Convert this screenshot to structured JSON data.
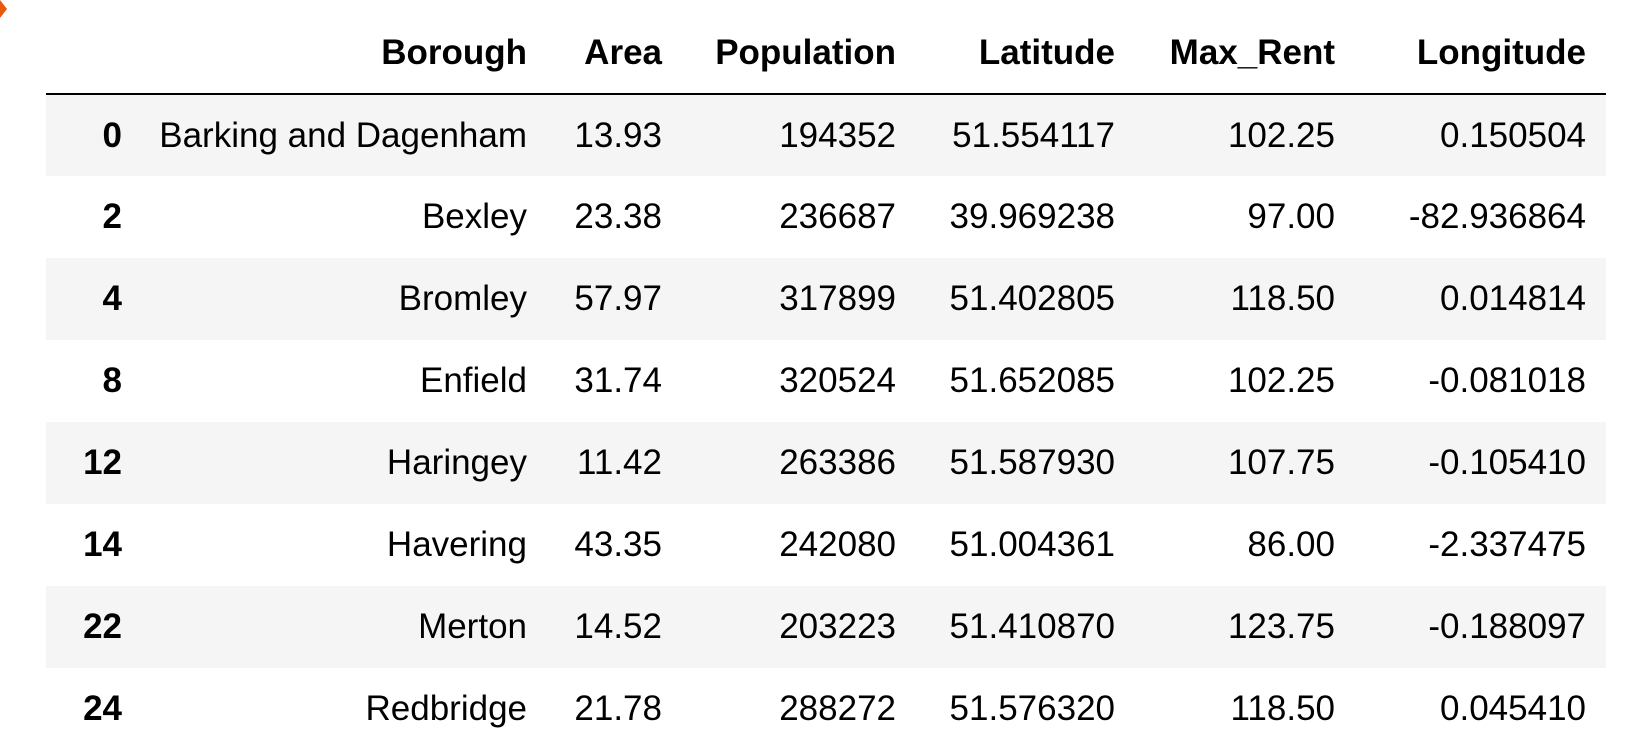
{
  "table": {
    "index_header": "",
    "columns": [
      "Borough",
      "Area",
      "Population",
      "Latitude",
      "Max_Rent",
      "Longitude"
    ],
    "rows": [
      {
        "index": "0",
        "cells": [
          "Barking and Dagenham",
          "13.93",
          "194352",
          "51.554117",
          "102.25",
          "0.150504"
        ]
      },
      {
        "index": "2",
        "cells": [
          "Bexley",
          "23.38",
          "236687",
          "39.969238",
          "97.00",
          "-82.936864"
        ]
      },
      {
        "index": "4",
        "cells": [
          "Bromley",
          "57.97",
          "317899",
          "51.402805",
          "118.50",
          "0.014814"
        ]
      },
      {
        "index": "8",
        "cells": [
          "Enfield",
          "31.74",
          "320524",
          "51.652085",
          "102.25",
          "-0.081018"
        ]
      },
      {
        "index": "12",
        "cells": [
          "Haringey",
          "11.42",
          "263386",
          "51.587930",
          "107.75",
          "-0.105410"
        ]
      },
      {
        "index": "14",
        "cells": [
          "Havering",
          "43.35",
          "242080",
          "51.004361",
          "86.00",
          "-2.337475"
        ]
      },
      {
        "index": "22",
        "cells": [
          "Merton",
          "14.52",
          "203223",
          "51.410870",
          "123.75",
          "-0.188097"
        ]
      },
      {
        "index": "24",
        "cells": [
          "Redbridge",
          "21.78",
          "288272",
          "51.576320",
          "118.50",
          "0.045410"
        ]
      }
    ]
  },
  "colors": {
    "stripe": "#f5f5f5",
    "header_rule": "#000000",
    "corner_mark": "#e8590c"
  }
}
